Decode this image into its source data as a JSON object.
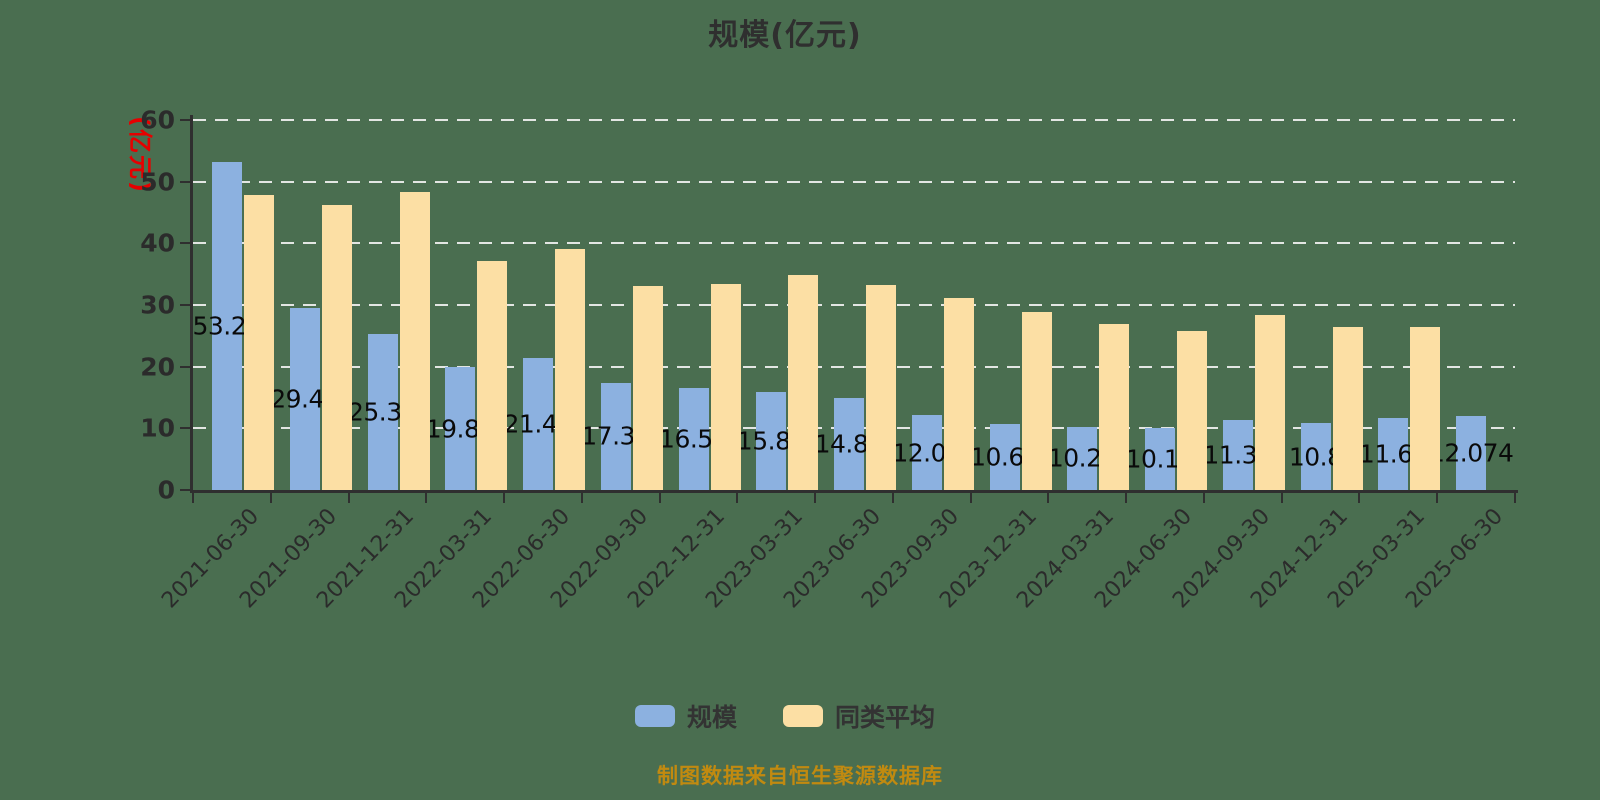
{
  "title": "规模(亿元)",
  "y_axis_name": "(亿元)",
  "source_note": "制图数据来自恒生聚源数据库",
  "legend": [
    {
      "label": "规模",
      "color": "#8CB1E0"
    },
    {
      "label": "同类平均",
      "color": "#FCDFA4"
    }
  ],
  "colors": {
    "background": "#4A6E50",
    "scale_series": "#8CB1E0",
    "peer_series": "#FCDFA4",
    "axis": "#2F2F2F",
    "grid": "#F0F0F0",
    "y_axis_name_red": "#E60000",
    "source_text": "#C18A10",
    "bar_label": "#0A0A0A"
  },
  "chart_data": {
    "type": "bar",
    "title": "规模(亿元)",
    "xlabel": "",
    "ylabel": "(亿元)",
    "ylim": [
      0,
      60
    ],
    "y_ticks": [
      0,
      10,
      20,
      30,
      40,
      50,
      60
    ],
    "grid": "dashed-white-horizontal",
    "legend_position": "bottom",
    "categories": [
      "2021-06-30",
      "2021-09-30",
      "2021-12-31",
      "2022-03-31",
      "2022-06-30",
      "2022-09-30",
      "2022-12-31",
      "2023-03-31",
      "2023-06-30",
      "2023-09-30",
      "2023-12-31",
      "2024-03-31",
      "2024-06-30",
      "2024-09-30",
      "2024-12-31",
      "2025-03-31",
      "2025-06-30"
    ],
    "series": [
      {
        "name": "规模",
        "color": "#8CB1E0",
        "values": [
          53.21,
          29.45,
          25.31,
          19.89,
          21.45,
          17.39,
          16.51,
          15.84,
          14.87,
          12.09,
          10.63,
          10.26,
          10.12,
          11.38,
          10.8,
          11.65,
          12.074
        ],
        "labels": [
          "53.21",
          "29.45",
          "25.31",
          "19.89",
          "21.45",
          "17.39",
          "16.51",
          "15.84",
          "14.87",
          "12.09",
          "10.63",
          "10.26",
          "10.12",
          "11.38",
          "10.8",
          "11.65",
          "12.074"
        ]
      },
      {
        "name": "同类平均",
        "color": "#FCDFA4",
        "values": [
          47.9,
          46.2,
          48.3,
          37.2,
          39.1,
          33.1,
          33.4,
          34.8,
          33.2,
          31.1,
          28.8,
          27.0,
          25.8,
          28.4,
          26.5,
          26.5,
          null
        ],
        "labels": []
      }
    ]
  }
}
